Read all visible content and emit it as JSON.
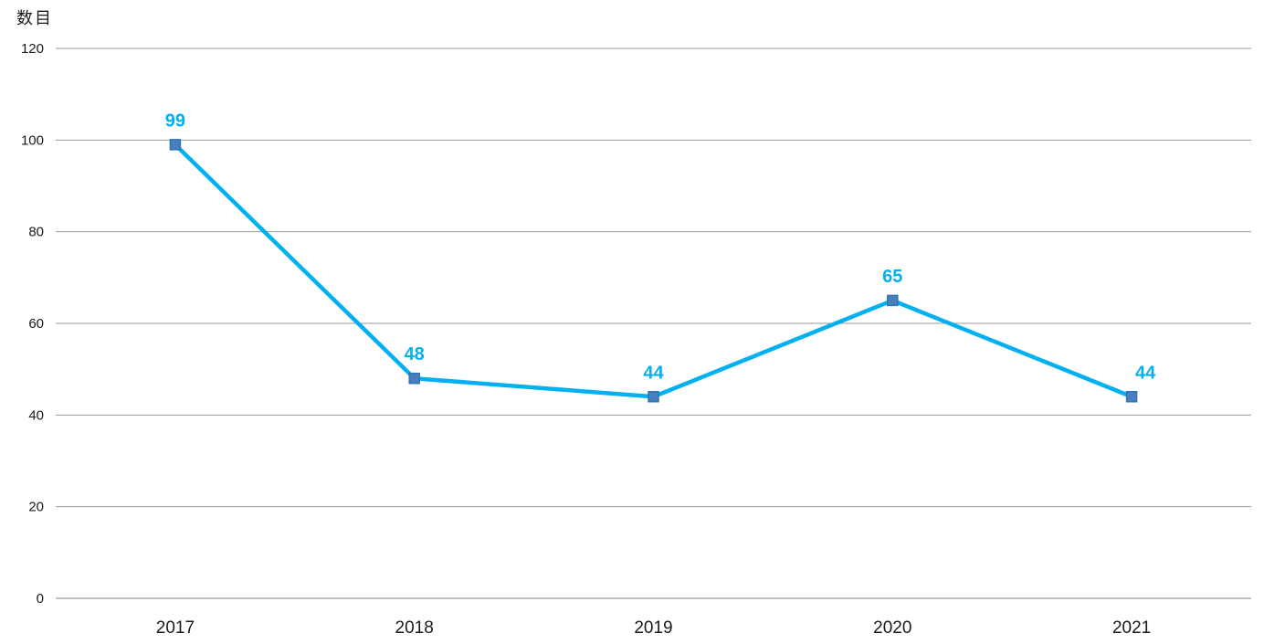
{
  "page": {
    "background": "#ffffff"
  },
  "chart_data": {
    "type": "line",
    "title": "",
    "ylabel": "数目",
    "xlabel": "",
    "categories": [
      "2017",
      "2018",
      "2019",
      "2020",
      "2021"
    ],
    "values": [
      99,
      48,
      44,
      65,
      44
    ],
    "data_labels": [
      "99",
      "48",
      "44",
      "65",
      "44"
    ],
    "yticks": [
      0,
      20,
      40,
      60,
      80,
      100,
      120
    ],
    "ylim": [
      0,
      120
    ],
    "grid": true,
    "legend": false,
    "label_dx": [
      0,
      0,
      0,
      0,
      15
    ],
    "colors": {
      "line": "#00b0f0",
      "marker_fill": "#4a7ebc",
      "marker_border": "#2e75b6",
      "data_label": "#00b0f0",
      "gridline": "#999999",
      "axis_line": "#808080",
      "tick_label": "#1a1a1a"
    }
  }
}
